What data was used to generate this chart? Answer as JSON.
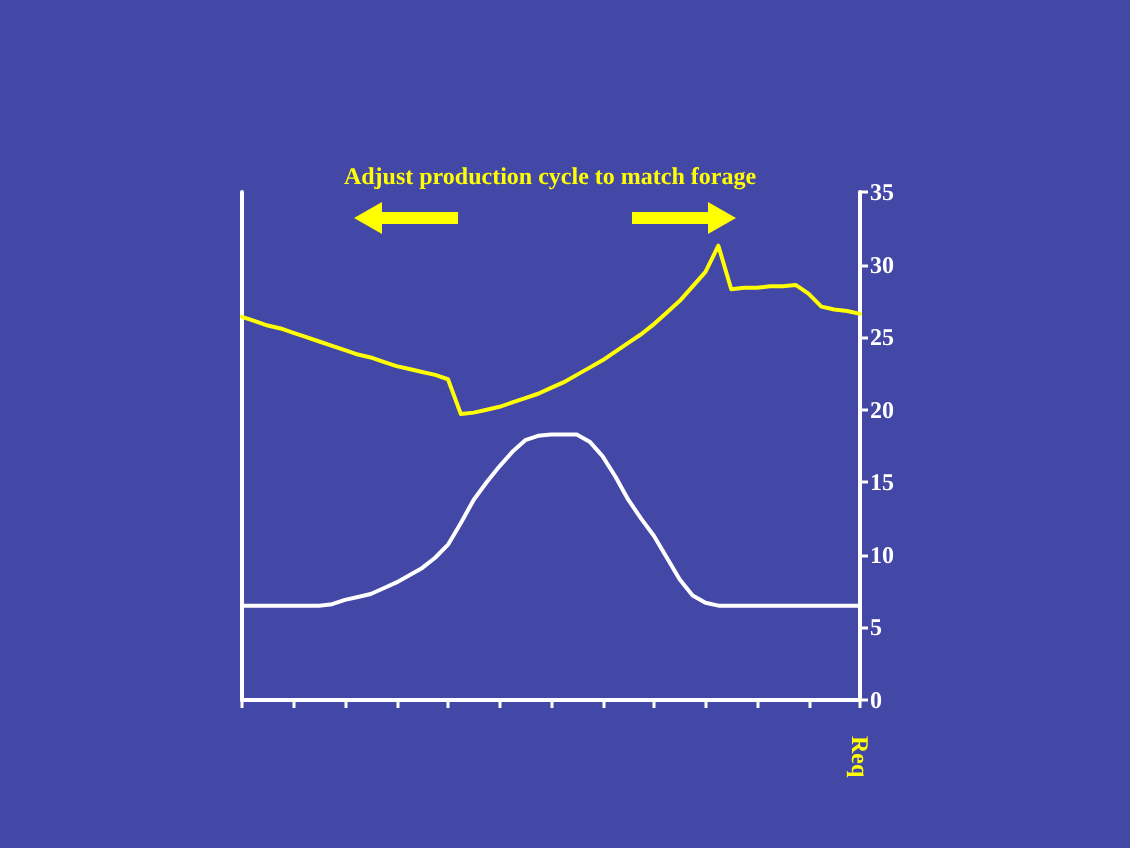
{
  "chart_data": {
    "type": "line",
    "title": "Adjust production cycle to match forage",
    "ylabel": "Req",
    "categories": [
      null,
      null,
      null,
      null,
      null,
      null,
      null,
      null,
      null,
      null,
      null,
      null,
      null,
      null,
      null,
      null,
      null,
      null,
      null,
      null,
      null,
      null,
      null,
      null,
      null,
      null,
      null,
      null,
      null,
      null,
      null,
      null,
      null,
      null,
      null,
      null,
      null,
      null,
      null,
      null,
      null,
      null,
      null,
      null,
      null,
      null,
      null,
      null,
      null
    ],
    "series": [
      {
        "color": "#ffff00",
        "values": [
          26.4,
          26.1,
          25.8,
          25.6,
          25.3,
          25.0,
          24.7,
          24.4,
          24.1,
          23.8,
          23.6,
          23.3,
          23.0,
          22.8,
          22.6,
          22.4,
          22.1,
          19.7,
          19.8,
          20.0,
          20.2,
          20.5,
          20.8,
          21.1,
          21.5,
          21.9,
          22.4,
          22.9,
          23.4,
          24.0,
          24.6,
          25.2,
          25.9,
          26.7,
          27.5,
          28.5,
          29.5,
          31.3,
          28.3,
          28.4,
          28.4,
          28.5,
          28.5,
          28.6,
          28.0,
          27.1,
          26.9,
          26.8,
          26.6
        ]
      },
      {
        "color": "#ffffff",
        "values": [
          6.5,
          6.5,
          6.5,
          6.5,
          6.5,
          6.5,
          6.5,
          6.6,
          6.9,
          7.1,
          7.3,
          7.7,
          8.1,
          8.6,
          9.1,
          9.8,
          10.7,
          12.2,
          13.8,
          15.0,
          16.1,
          17.1,
          17.9,
          18.2,
          18.3,
          18.3,
          18.3,
          17.8,
          16.8,
          15.4,
          13.8,
          12.5,
          11.3,
          9.8,
          8.3,
          7.2,
          6.7,
          6.5,
          6.5,
          6.5,
          6.5,
          6.5,
          6.5,
          6.5,
          6.5,
          6.5,
          6.5,
          6.5,
          6.5
        ]
      }
    ],
    "ylim": [
      0,
      35
    ],
    "yticks": [
      0,
      5,
      10,
      15,
      20,
      25,
      30,
      35
    ],
    "tick_labels": "y",
    "grid": false,
    "line_style": "solid"
  }
}
